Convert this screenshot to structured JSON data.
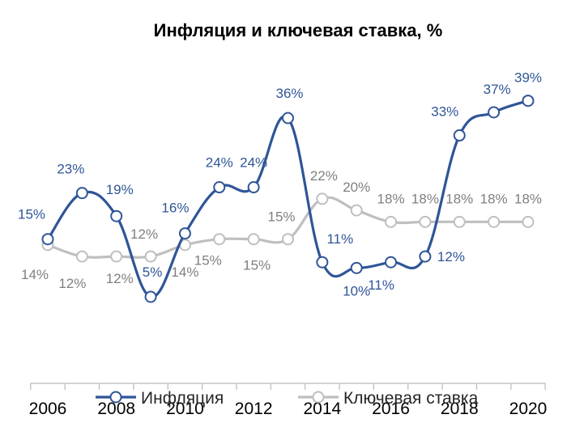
{
  "chart_data": {
    "type": "line",
    "title": "Инфляция и ключевая ставка, %",
    "xlabel": "",
    "ylabel": "",
    "x": [
      2006,
      2007,
      2008,
      2009,
      2010,
      2011,
      2012,
      2013,
      2014,
      2015,
      2016,
      2017,
      2018,
      2019,
      2020
    ],
    "x_tick_labels": [
      "2006",
      "2008",
      "2010",
      "2012",
      "2014",
      "2016",
      "2018",
      "2020"
    ],
    "x_ticks": [
      2006,
      2008,
      2010,
      2012,
      2014,
      2016,
      2018,
      2020
    ],
    "ylim": [
      -10,
      45
    ],
    "grid": false,
    "legend_position": "bottom",
    "series": [
      {
        "name": "Инфляция",
        "color": "#2f5597",
        "values": [
          15,
          23,
          19,
          5,
          16,
          24,
          24,
          36,
          11,
          10,
          11,
          12,
          33,
          37,
          39
        ],
        "labels": [
          "15%",
          "23%",
          "19%",
          "5%",
          "16%",
          "24%",
          "24%",
          "36%",
          "11%",
          "10%",
          "11%",
          "12%",
          "33%",
          "37%",
          "39%"
        ]
      },
      {
        "name": "Ключевая ставка",
        "color": "#bfbfbf",
        "label_color": "#7f7f7f",
        "values": [
          14,
          12,
          12,
          12,
          14,
          15,
          15,
          15,
          22,
          20,
          18,
          18,
          18,
          18,
          18
        ],
        "labels": [
          "14%",
          "12%",
          "12%",
          "12%",
          "14%",
          "15%",
          "15%",
          "15%",
          "22%",
          "20%",
          "18%",
          "18%",
          "18%",
          "18%",
          "18%"
        ]
      }
    ]
  }
}
